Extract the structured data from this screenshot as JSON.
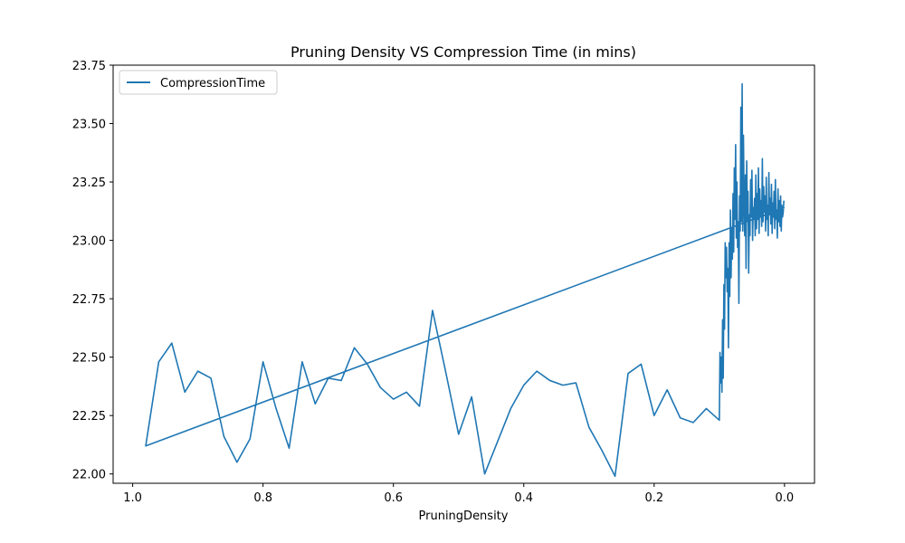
{
  "chart_data": {
    "type": "line",
    "title": "Pruning Density VS Compression Time (in mins)",
    "xlabel": "PruningDensity",
    "ylabel": "",
    "xlim": [
      1.03,
      -0.046
    ],
    "ylim": [
      21.96,
      23.75
    ],
    "x_inverted": true,
    "x_ticks": [
      1.0,
      0.8,
      0.6,
      0.4,
      0.2,
      0.0
    ],
    "x_tick_labels": [
      "1.0",
      "0.8",
      "0.6",
      "0.4",
      "0.2",
      "0.0"
    ],
    "y_ticks": [
      22.0,
      22.25,
      22.5,
      22.75,
      23.0,
      23.25,
      23.5,
      23.75
    ],
    "y_tick_labels": [
      "22.00",
      "22.25",
      "22.50",
      "22.75",
      "23.00",
      "23.25",
      "23.50",
      "23.75"
    ],
    "grid": false,
    "legend": {
      "position": "top-left",
      "entries": [
        "CompressionTime"
      ]
    },
    "series": [
      {
        "name": "CompressionTime",
        "color": "#1f77b4",
        "x": [
          0.0,
          0.98,
          0.96,
          0.94,
          0.92,
          0.9,
          0.88,
          0.86,
          0.84,
          0.82,
          0.8,
          0.78,
          0.76,
          0.74,
          0.72,
          0.7,
          0.68,
          0.66,
          0.64,
          0.62,
          0.6,
          0.58,
          0.56,
          0.54,
          0.52,
          0.5,
          0.48,
          0.46,
          0.44,
          0.42,
          0.4,
          0.38,
          0.36,
          0.34,
          0.32,
          0.3,
          0.28,
          0.26,
          0.24,
          0.22,
          0.2,
          0.18,
          0.16,
          0.14,
          0.12,
          0.1,
          0.099,
          0.098,
          0.097,
          0.096,
          0.095,
          0.094,
          0.093,
          0.092,
          0.091,
          0.09,
          0.089,
          0.088,
          0.087,
          0.086,
          0.085,
          0.084,
          0.083,
          0.082,
          0.081,
          0.08,
          0.079,
          0.078,
          0.077,
          0.076,
          0.075,
          0.074,
          0.073,
          0.072,
          0.071,
          0.07,
          0.069,
          0.068,
          0.067,
          0.066,
          0.065,
          0.064,
          0.063,
          0.062,
          0.061,
          0.06,
          0.059,
          0.058,
          0.057,
          0.056,
          0.055,
          0.054,
          0.053,
          0.052,
          0.051,
          0.05,
          0.049,
          0.048,
          0.047,
          0.046,
          0.045,
          0.044,
          0.043,
          0.042,
          0.041,
          0.04,
          0.039,
          0.038,
          0.037,
          0.036,
          0.035,
          0.034,
          0.033,
          0.032,
          0.031,
          0.03,
          0.029,
          0.028,
          0.027,
          0.026,
          0.025,
          0.024,
          0.023,
          0.022,
          0.021,
          0.02,
          0.019,
          0.018,
          0.017,
          0.016,
          0.015,
          0.014,
          0.013,
          0.012,
          0.011,
          0.01,
          0.009,
          0.008,
          0.007,
          0.006,
          0.005,
          0.004,
          0.003,
          0.002,
          0.001
        ],
        "y": [
          23.14,
          22.12,
          22.48,
          22.56,
          22.35,
          22.44,
          22.41,
          22.16,
          22.05,
          22.15,
          22.48,
          22.28,
          22.11,
          22.48,
          22.3,
          22.41,
          22.4,
          22.54,
          22.47,
          22.37,
          22.32,
          22.35,
          22.29,
          22.7,
          22.44,
          22.17,
          22.33,
          22.0,
          22.14,
          22.28,
          22.38,
          22.44,
          22.4,
          22.38,
          22.39,
          22.2,
          22.1,
          21.99,
          22.43,
          22.47,
          22.25,
          22.36,
          22.24,
          22.22,
          22.28,
          22.23,
          22.52,
          22.39,
          22.5,
          22.35,
          22.66,
          22.41,
          22.81,
          22.62,
          22.99,
          22.84,
          22.97,
          22.78,
          22.88,
          22.54,
          22.99,
          22.76,
          23.13,
          22.84,
          23.05,
          22.92,
          23.2,
          22.95,
          23.31,
          23.09,
          23.41,
          23.01,
          23.25,
          22.97,
          23.08,
          22.73,
          23.19,
          23.04,
          23.57,
          23.08,
          23.67,
          23.04,
          23.45,
          23.16,
          23.02,
          23.28,
          22.88,
          23.34,
          23.08,
          23.21,
          22.86,
          23.11,
          23.02,
          23.26,
          23.1,
          23.3,
          23.0,
          23.14,
          23.09,
          23.18,
          23.02,
          23.28,
          23.05,
          23.2,
          23.09,
          23.31,
          23.03,
          23.22,
          23.1,
          23.17,
          23.06,
          23.35,
          23.08,
          23.23,
          23.12,
          23.19,
          23.04,
          23.27,
          23.09,
          23.15,
          23.02,
          23.29,
          23.11,
          23.18,
          23.07,
          23.24,
          23.03,
          23.16,
          23.1,
          23.21,
          23.05,
          23.26,
          23.09,
          23.13,
          23.01,
          23.22,
          23.08,
          23.17,
          23.06,
          23.19,
          23.04,
          23.15,
          23.1,
          23.12,
          23.17
        ]
      }
    ]
  }
}
